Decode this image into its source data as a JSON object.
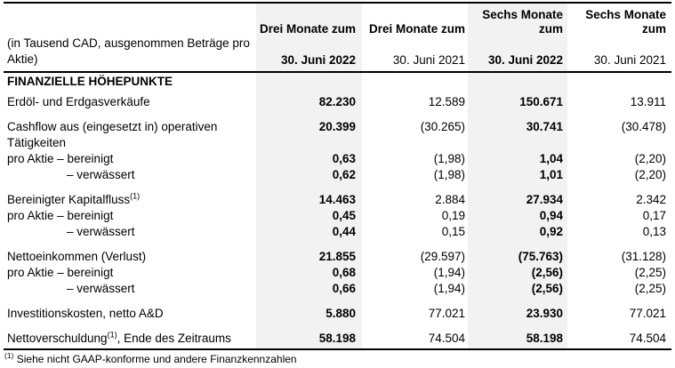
{
  "table": {
    "unit_note": "(in Tausend CAD, ausgenommen Beträge pro Aktie)",
    "columns": [
      {
        "period_lines": [
          "Drei Monate zum"
        ],
        "date": "30. Juni 2022",
        "highlighted": true,
        "emphasis": true
      },
      {
        "period_lines": [
          "Drei Monate zum"
        ],
        "date": "30. Juni 2021",
        "highlighted": false,
        "emphasis": false
      },
      {
        "period_lines": [
          "Sechs Monate",
          "zum"
        ],
        "date": "30. Juni 2022",
        "highlighted": true,
        "emphasis": true
      },
      {
        "period_lines": [
          "Sechs Monate",
          "zum"
        ],
        "date": "30. Juni 2021",
        "highlighted": false,
        "emphasis": false
      }
    ],
    "section_title": "FINANZIELLE HÖHEPUNKTE",
    "rows": [
      {
        "label": "Erdöl- und Erdgasverkäufe",
        "gap_before": false,
        "indent": false,
        "values": [
          "82.230",
          "12.589",
          "150.671",
          "13.911"
        ]
      },
      {
        "label": "Cashflow aus (eingesetzt in) operativen Tätigkeiten",
        "gap_before": true,
        "indent": false,
        "values": [
          "20.399",
          "(30.265)",
          "30.741",
          "(30.478)"
        ]
      },
      {
        "label": "pro Aktie – bereinigt",
        "gap_before": false,
        "indent": false,
        "values": [
          "0,63",
          "(1,98)",
          "1,04",
          "(2,20)"
        ]
      },
      {
        "label": "– verwässert",
        "gap_before": false,
        "indent": true,
        "values": [
          "0,62",
          "(1,98)",
          "1,01",
          "(2,20)"
        ]
      },
      {
        "label": "Bereinigter Kapitalfluss",
        "sup": "(1)",
        "gap_before": true,
        "indent": false,
        "values": [
          "14.463",
          "2.884",
          "27.934",
          "2.342"
        ]
      },
      {
        "label": "pro Aktie – bereinigt",
        "gap_before": false,
        "indent": false,
        "values": [
          "0,45",
          "0,19",
          "0,94",
          "0,17"
        ]
      },
      {
        "label": "– verwässert",
        "gap_before": false,
        "indent": true,
        "values": [
          "0,44",
          "0,15",
          "0,92",
          "0,13"
        ]
      },
      {
        "label": "Nettoeinkommen (Verlust)",
        "gap_before": true,
        "indent": false,
        "values": [
          "21.855",
          "(29.597)",
          "(75.763)",
          "(31.128)"
        ]
      },
      {
        "label": "pro Aktie – bereinigt",
        "gap_before": false,
        "indent": false,
        "values": [
          "0,68",
          "(1,94)",
          "(2,56)",
          "(2,25)"
        ]
      },
      {
        "label": "– verwässert",
        "gap_before": false,
        "indent": true,
        "values": [
          "0,66",
          "(1,94)",
          "(2,56)",
          "(2,25)"
        ]
      },
      {
        "label": "Investitionskosten, netto A&D",
        "gap_before": true,
        "indent": false,
        "values": [
          "5.880",
          "77.021",
          "23.930",
          "77.021"
        ]
      },
      {
        "label": "Nettoverschuldung",
        "sup": "(1)",
        "label_after": ", Ende des Zeitraums",
        "gap_before": true,
        "indent": false,
        "values": [
          "58.198",
          "74.504",
          "58.198",
          "74.504"
        ]
      }
    ],
    "footnote": {
      "marker": "(1)",
      "text": "Siehe nicht GAAP-konforme und andere Finanzkennzahlen"
    }
  },
  "colors": {
    "highlight": "#f2f2f2",
    "border": "#000000",
    "text": "#000000"
  }
}
